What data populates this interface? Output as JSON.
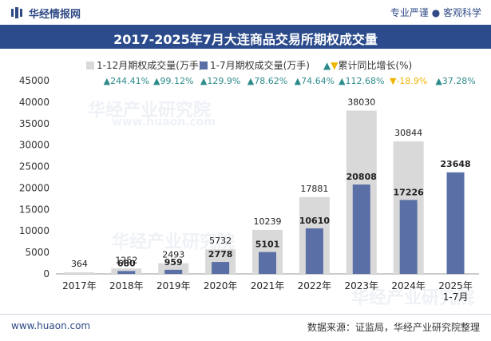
{
  "header": {
    "brand": "华经情报网",
    "slogan_left": "专业严谨",
    "slogan_right": "客观科学"
  },
  "watermark": "华经产业研究院",
  "watermark_url": "www.huaon.com",
  "chart_data": {
    "type": "bar",
    "title": "2017-2025年7月大连商品交易所期权成交量",
    "categories": [
      "2017年",
      "2018年",
      "2019年",
      "2020年",
      "2021年",
      "2022年",
      "2023年",
      "2024年",
      "2025年\n1-7月"
    ],
    "series": [
      {
        "name": "1-12月期权成交量(万手)",
        "color": "#d9d9d9",
        "values": [
          364,
          1252,
          2493,
          5732,
          10239,
          17881,
          38030,
          30844,
          null
        ]
      },
      {
        "name": "1-7月期权成交量(万手)",
        "color": "#5a6fa6",
        "values": [
          null,
          680,
          959,
          2778,
          5101,
          10610,
          20808,
          17226,
          23648
        ]
      }
    ],
    "growth": {
      "name": "累计同比增长(%)",
      "values": [
        "244.41%",
        "99.12%",
        "129.9%",
        "78.62%",
        "74.64%",
        "112.68%",
        "-18.9%",
        "37.28%"
      ],
      "up_color": "#2e8b8b",
      "down_color": "#f0b400"
    },
    "yticks": [
      0,
      5000,
      10000,
      15000,
      20000,
      25000,
      30000,
      35000,
      40000,
      45000
    ],
    "ylim": [
      0,
      45000
    ]
  },
  "footer": {
    "website": "www.huaon.com",
    "source": "数据来源：证监局，华经产业研究院整理"
  }
}
